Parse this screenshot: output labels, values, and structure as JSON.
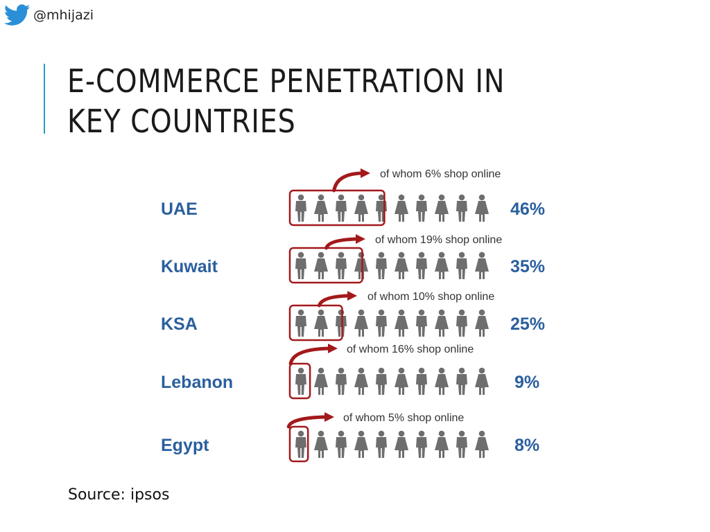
{
  "header": {
    "handle": "@mhijazi",
    "title": "E-COMMERCE PENETRATION IN KEY COUNTRIES"
  },
  "source": "Source: ipsos",
  "icons": [
    "twitter-bird-icon",
    "person-icon",
    "curved-arrow-icon"
  ],
  "colors": {
    "label": "#2a5f9e",
    "figure": "#6e6e6e",
    "highlight": "#a3191b",
    "accent_bar": "#2e96c8",
    "twitter": "#2a8fd6"
  },
  "chart_data": {
    "type": "pictogram",
    "figures_per_row": 10,
    "value_suffix": "%",
    "rows": [
      {
        "country": "UAE",
        "penetration": 46,
        "shop_online": 6,
        "penetration_label": "46%",
        "annotation": "of whom 6% shop online"
      },
      {
        "country": "Kuwait",
        "penetration": 35,
        "shop_online": 19,
        "penetration_label": "35%",
        "annotation": "of whom 19% shop online"
      },
      {
        "country": "KSA",
        "penetration": 25,
        "shop_online": 10,
        "penetration_label": "25%",
        "annotation": "of whom 10% shop online"
      },
      {
        "country": "Lebanon",
        "penetration": 9,
        "shop_online": 16,
        "penetration_label": "9%",
        "annotation": "of whom 16% shop online"
      },
      {
        "country": "Egypt",
        "penetration": 8,
        "shop_online": 5,
        "penetration_label": "8%",
        "annotation": "of whom 5% shop online"
      }
    ]
  }
}
